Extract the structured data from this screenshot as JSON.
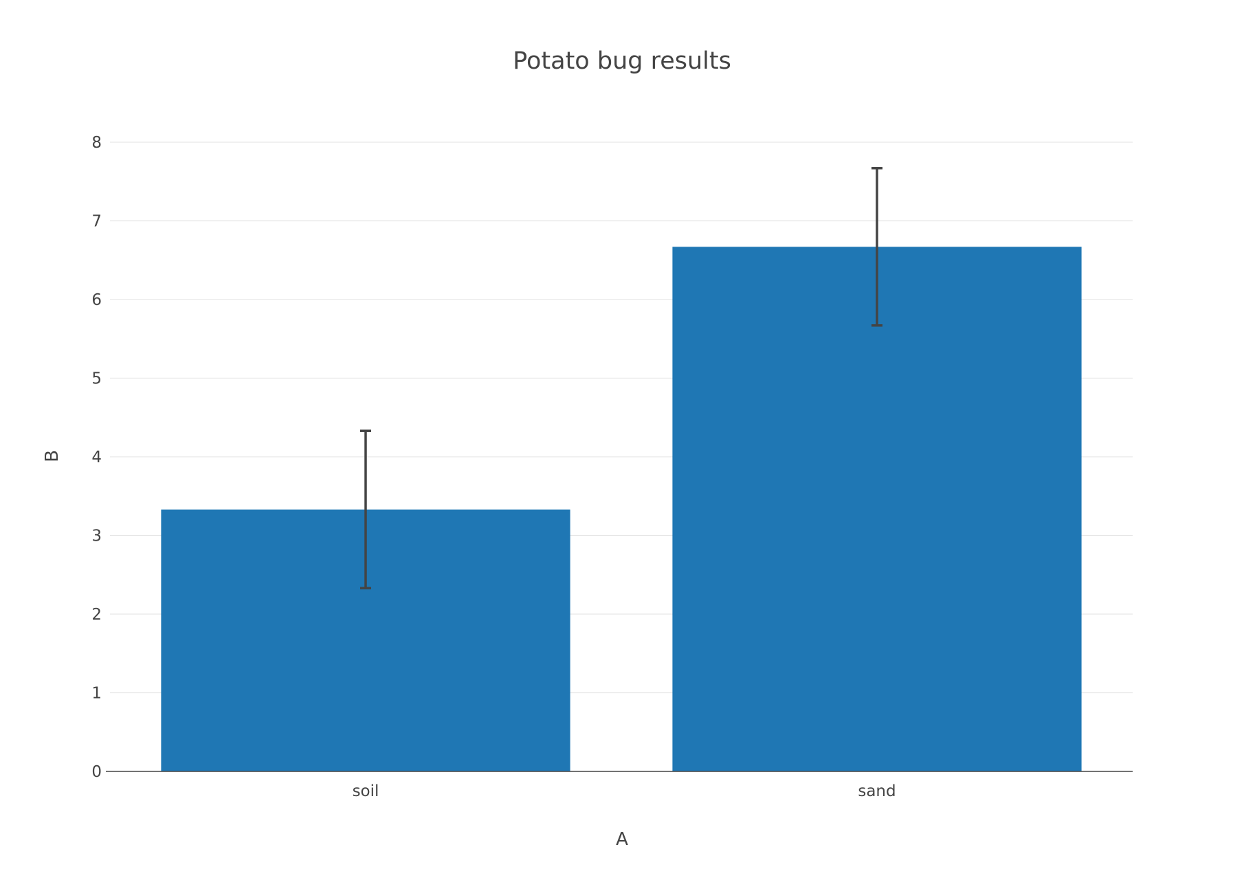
{
  "chart_data": {
    "type": "bar",
    "title": "Potato bug results",
    "xlabel": "A",
    "ylabel": "B",
    "categories": [
      "soil",
      "sand"
    ],
    "values": [
      3.33,
      6.67
    ],
    "error": [
      1.0,
      1.0
    ],
    "ylim": [
      0,
      8
    ],
    "yticks": [
      0,
      1,
      2,
      3,
      4,
      5,
      6,
      7,
      8
    ],
    "grid": true,
    "legend": "none",
    "colors": {
      "bar": "#1f77b4",
      "error_bar": "#444444",
      "grid": "#e6e6e6",
      "axis_line": "#444444",
      "text": "#444444"
    }
  }
}
